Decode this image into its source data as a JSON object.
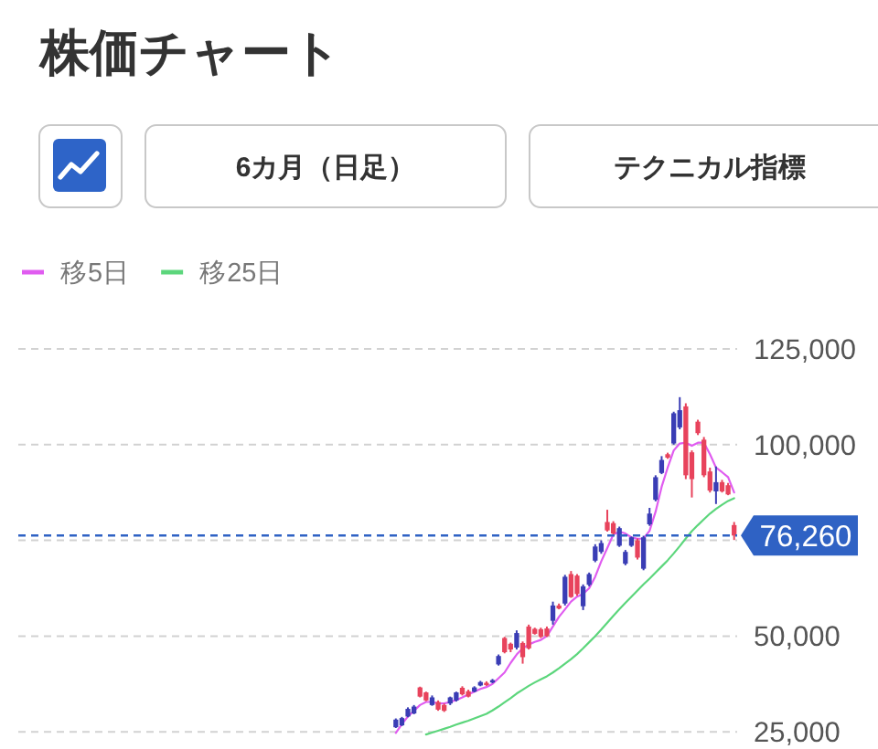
{
  "chart_data": {
    "type": "candlestick",
    "title": "株価チャート",
    "annotations": [
      "6カ月（日足）",
      "テクニカル指標"
    ],
    "categories": [
      null,
      null,
      null,
      null,
      null,
      null,
      null,
      null,
      null,
      null,
      null,
      null,
      null,
      null,
      null,
      null,
      null,
      null,
      null,
      null,
      null,
      null,
      null,
      null,
      null,
      null,
      null,
      null,
      null,
      null,
      null,
      null,
      null,
      null,
      null,
      null,
      null,
      null,
      null,
      null,
      null,
      null,
      null,
      null,
      null,
      null,
      null,
      null,
      null,
      null,
      null,
      null,
      null,
      null,
      null,
      null,
      null,
      null,
      null,
      null,
      null,
      null,
      null,
      null,
      null,
      null,
      null,
      null,
      null,
      null,
      null,
      null,
      null,
      null,
      null,
      null,
      null,
      null,
      null,
      null,
      null,
      null,
      null,
      null,
      null,
      null,
      null,
      null,
      null,
      null,
      null,
      null,
      null,
      null,
      null,
      null,
      null,
      null,
      null,
      null,
      null,
      null,
      null,
      null,
      null,
      null,
      null,
      null,
      null,
      null,
      null,
      null,
      null,
      null,
      null,
      null,
      null,
      null,
      null
    ],
    "ohlc": [
      null,
      null,
      null,
      null,
      null,
      null,
      null,
      null,
      null,
      null,
      null,
      null,
      null,
      null,
      null,
      null,
      null,
      null,
      null,
      null,
      null,
      null,
      null,
      null,
      null,
      null,
      null,
      null,
      null,
      null,
      null,
      null,
      null,
      null,
      null,
      null,
      null,
      null,
      null,
      null,
      null,
      null,
      null,
      null,
      null,
      null,
      null,
      null,
      null,
      null,
      null,
      null,
      null,
      null,
      null,
      null,
      null,
      null,
      null,
      null,
      null,
      null,
      [
        26200,
        28500,
        26000,
        28200
      ],
      [
        26700,
        28900,
        26500,
        28600
      ],
      [
        29000,
        31400,
        28800,
        31000
      ],
      [
        29800,
        32000,
        29600,
        31600
      ],
      [
        36600,
        36800,
        34000,
        34200
      ],
      [
        35300,
        35500,
        33000,
        33200
      ],
      [
        32000,
        34500,
        31800,
        34000
      ],
      [
        32800,
        33200,
        30500,
        30800
      ],
      [
        32000,
        32400,
        30200,
        30500
      ],
      [
        32400,
        34200,
        32000,
        34000
      ],
      [
        33200,
        35500,
        32900,
        35300
      ],
      [
        36500,
        36900,
        34500,
        34800
      ],
      [
        35600,
        36000,
        34000,
        34200
      ],
      [
        35500,
        36900,
        35300,
        36600
      ],
      [
        37100,
        38300,
        36900,
        38000
      ],
      [
        37800,
        38200,
        37000,
        37200
      ],
      [
        37900,
        38800,
        37700,
        38500
      ],
      [
        42600,
        45200,
        42300,
        44800
      ],
      [
        49500,
        49800,
        45500,
        45800
      ],
      [
        48000,
        48300,
        45800,
        46500
      ],
      [
        47000,
        51500,
        46500,
        50800
      ],
      [
        48200,
        48600,
        42800,
        44500
      ],
      [
        52500,
        53000,
        46500,
        46800
      ],
      [
        51900,
        52200,
        50400,
        50600
      ],
      [
        51800,
        52200,
        49500,
        49800
      ],
      [
        52000,
        52500,
        49800,
        50000
      ],
      [
        54000,
        59000,
        53000,
        58000
      ],
      [
        58000,
        58500,
        57000,
        57200
      ],
      [
        58500,
        66000,
        58000,
        65500
      ],
      [
        66200,
        67000,
        60000,
        60200
      ],
      [
        65800,
        66200,
        60500,
        61000
      ],
      [
        57800,
        63500,
        56800,
        63000
      ],
      [
        63400,
        66600,
        63000,
        66200
      ],
      [
        69700,
        74000,
        69300,
        73400
      ],
      [
        72000,
        75000,
        71500,
        74300
      ],
      [
        79800,
        83000,
        77300,
        77600
      ],
      [
        79500,
        80000,
        76500,
        76800
      ],
      [
        73600,
        78600,
        73300,
        78200
      ],
      [
        68900,
        72500,
        68500,
        72000
      ],
      [
        73600,
        76000,
        73300,
        75800
      ],
      [
        75000,
        75500,
        70000,
        70500
      ],
      [
        67600,
        76200,
        67200,
        75800
      ],
      [
        79200,
        83500,
        78800,
        82000
      ],
      [
        85600,
        92000,
        85200,
        91500
      ],
      [
        92600,
        97000,
        92300,
        96000
      ],
      [
        97500,
        97900,
        96300,
        96600
      ],
      [
        100300,
        108600,
        100000,
        108200
      ],
      [
        104500,
        112400,
        104000,
        109000
      ],
      [
        110000,
        110800,
        91000,
        92000
      ],
      [
        98000,
        98500,
        86200,
        91000
      ],
      [
        106000,
        106500,
        102500,
        103000
      ],
      [
        101300,
        102000,
        91500,
        92000
      ],
      [
        93000,
        94000,
        87500,
        88000
      ],
      [
        87800,
        94300,
        84500,
        90200
      ],
      [
        90200,
        90800,
        87500,
        87800
      ],
      [
        89400,
        90000,
        86800,
        87000
      ],
      [
        79000,
        79800,
        75100,
        76260
      ]
    ],
    "colors": [
      null,
      null,
      null,
      null,
      null,
      null,
      null,
      null,
      null,
      null,
      null,
      null,
      null,
      null,
      null,
      null,
      null,
      null,
      null,
      null,
      null,
      null,
      null,
      null,
      null,
      null,
      null,
      null,
      null,
      null,
      null,
      null,
      null,
      null,
      null,
      null,
      null,
      null,
      null,
      null,
      null,
      null,
      null,
      null,
      null,
      null,
      null,
      null,
      null,
      null,
      null,
      null,
      null,
      null,
      null,
      null,
      null,
      null,
      null,
      null,
      null,
      null,
      "#3a3db5",
      "#3a3db5",
      "#3a3db5",
      "#3a3db5",
      "#e8435c",
      "#e8435c",
      "#3a3db5",
      "#e8435c",
      "#e8435c",
      "#3a3db5",
      "#3a3db5",
      "#e8435c",
      "#e8435c",
      "#3a3db5",
      "#3a3db5",
      "#e8435c",
      "#3a3db5",
      "#3a3db5",
      "#e8435c",
      "#e8435c",
      "#3a3db5",
      "#e8435c",
      "#e8435c",
      "#e8435c",
      "#e8435c",
      "#e8435c",
      "#3a3db5",
      "#e8435c",
      "#3a3db5",
      "#e8435c",
      "#e8435c",
      "#3a3db5",
      "#3a3db5",
      "#3a3db5",
      "#3a3db5",
      "#e8435c",
      "#e8435c",
      "#3a3db5",
      "#3a3db5",
      "#3a3db5",
      "#e8435c",
      "#3a3db5",
      "#3a3db5",
      "#3a3db5",
      "#3a3db5",
      "#e8435c",
      "#3a3db5",
      "#3a3db5",
      "#e8435c",
      "#e8435c",
      "#e8435c",
      "#e8435c",
      "#e8435c",
      "#3a3db5",
      "#e8435c",
      "#e8435c",
      "#e8435c"
    ],
    "series": [
      {
        "name": "移5日",
        "color": "#e05cf0",
        "type": "line",
        "values": [
          null,
          null,
          null,
          null,
          null,
          null,
          null,
          null,
          null,
          null,
          null,
          null,
          null,
          null,
          null,
          null,
          null,
          null,
          null,
          null,
          null,
          null,
          null,
          null,
          null,
          null,
          null,
          null,
          null,
          null,
          null,
          null,
          null,
          null,
          null,
          null,
          null,
          null,
          null,
          null,
          null,
          null,
          null,
          null,
          null,
          null,
          null,
          null,
          null,
          null,
          null,
          null,
          null,
          null,
          null,
          null,
          null,
          null,
          null,
          null,
          null,
          null,
          24700,
          27000,
          29000,
          30500,
          32000,
          32800,
          32800,
          32400,
          32400,
          32800,
          33300,
          34000,
          34800,
          35500,
          36200,
          36700,
          37500,
          39000,
          40500,
          43000,
          45200,
          46800,
          47800,
          48500,
          49000,
          50000,
          52500,
          55000,
          57000,
          59000,
          60300,
          61000,
          62500,
          65500,
          69500,
          73000,
          76500,
          77300,
          76800,
          75800,
          75400,
          75500,
          77500,
          82500,
          89000,
          94000,
          98500,
          100300,
          100500,
          99700,
          100500,
          100500,
          97500,
          94000,
          92800,
          91500,
          87500
        ]
      },
      {
        "name": "移25日",
        "color": "#5cd67c",
        "type": "line",
        "values": [
          null,
          null,
          null,
          null,
          null,
          null,
          null,
          null,
          null,
          null,
          null,
          null,
          null,
          null,
          null,
          null,
          null,
          null,
          null,
          null,
          null,
          null,
          null,
          null,
          null,
          null,
          null,
          null,
          null,
          null,
          null,
          null,
          null,
          null,
          null,
          null,
          null,
          null,
          null,
          null,
          null,
          null,
          null,
          null,
          null,
          null,
          null,
          null,
          null,
          null,
          null,
          null,
          null,
          null,
          null,
          null,
          null,
          null,
          null,
          null,
          null,
          null,
          null,
          null,
          null,
          null,
          null,
          24300,
          24800,
          25300,
          25800,
          26300,
          26900,
          27400,
          27900,
          28500,
          29100,
          29700,
          30600,
          31600,
          32700,
          33800,
          35000,
          36000,
          37000,
          37900,
          38700,
          39500,
          40500,
          41600,
          42800,
          44000,
          45300,
          46800,
          48400,
          50000,
          51700,
          53500,
          55300,
          57000,
          58700,
          60300,
          61900,
          63500,
          65000,
          66600,
          68200,
          69800,
          71600,
          73500,
          75500,
          77400,
          79000,
          80500,
          82000,
          83200,
          84300,
          85300,
          86000
        ]
      }
    ],
    "ylim": [
      24000,
      125000
    ],
    "yticks": [
      {
        "value": 25000,
        "label": "25,000"
      },
      {
        "value": 50000,
        "label": "50,000"
      },
      {
        "value": 75000,
        "label": null
      },
      {
        "value": 100000,
        "label": "100,000"
      },
      {
        "value": 125000,
        "label": "125,000"
      }
    ],
    "ref_lines": [
      {
        "axis": "y",
        "value": 76260,
        "label": "76,260",
        "color": "#2f62c4",
        "line_style": "dashed"
      }
    ],
    "grid": "y",
    "legend": "top left",
    "tick_labels": "y"
  }
}
